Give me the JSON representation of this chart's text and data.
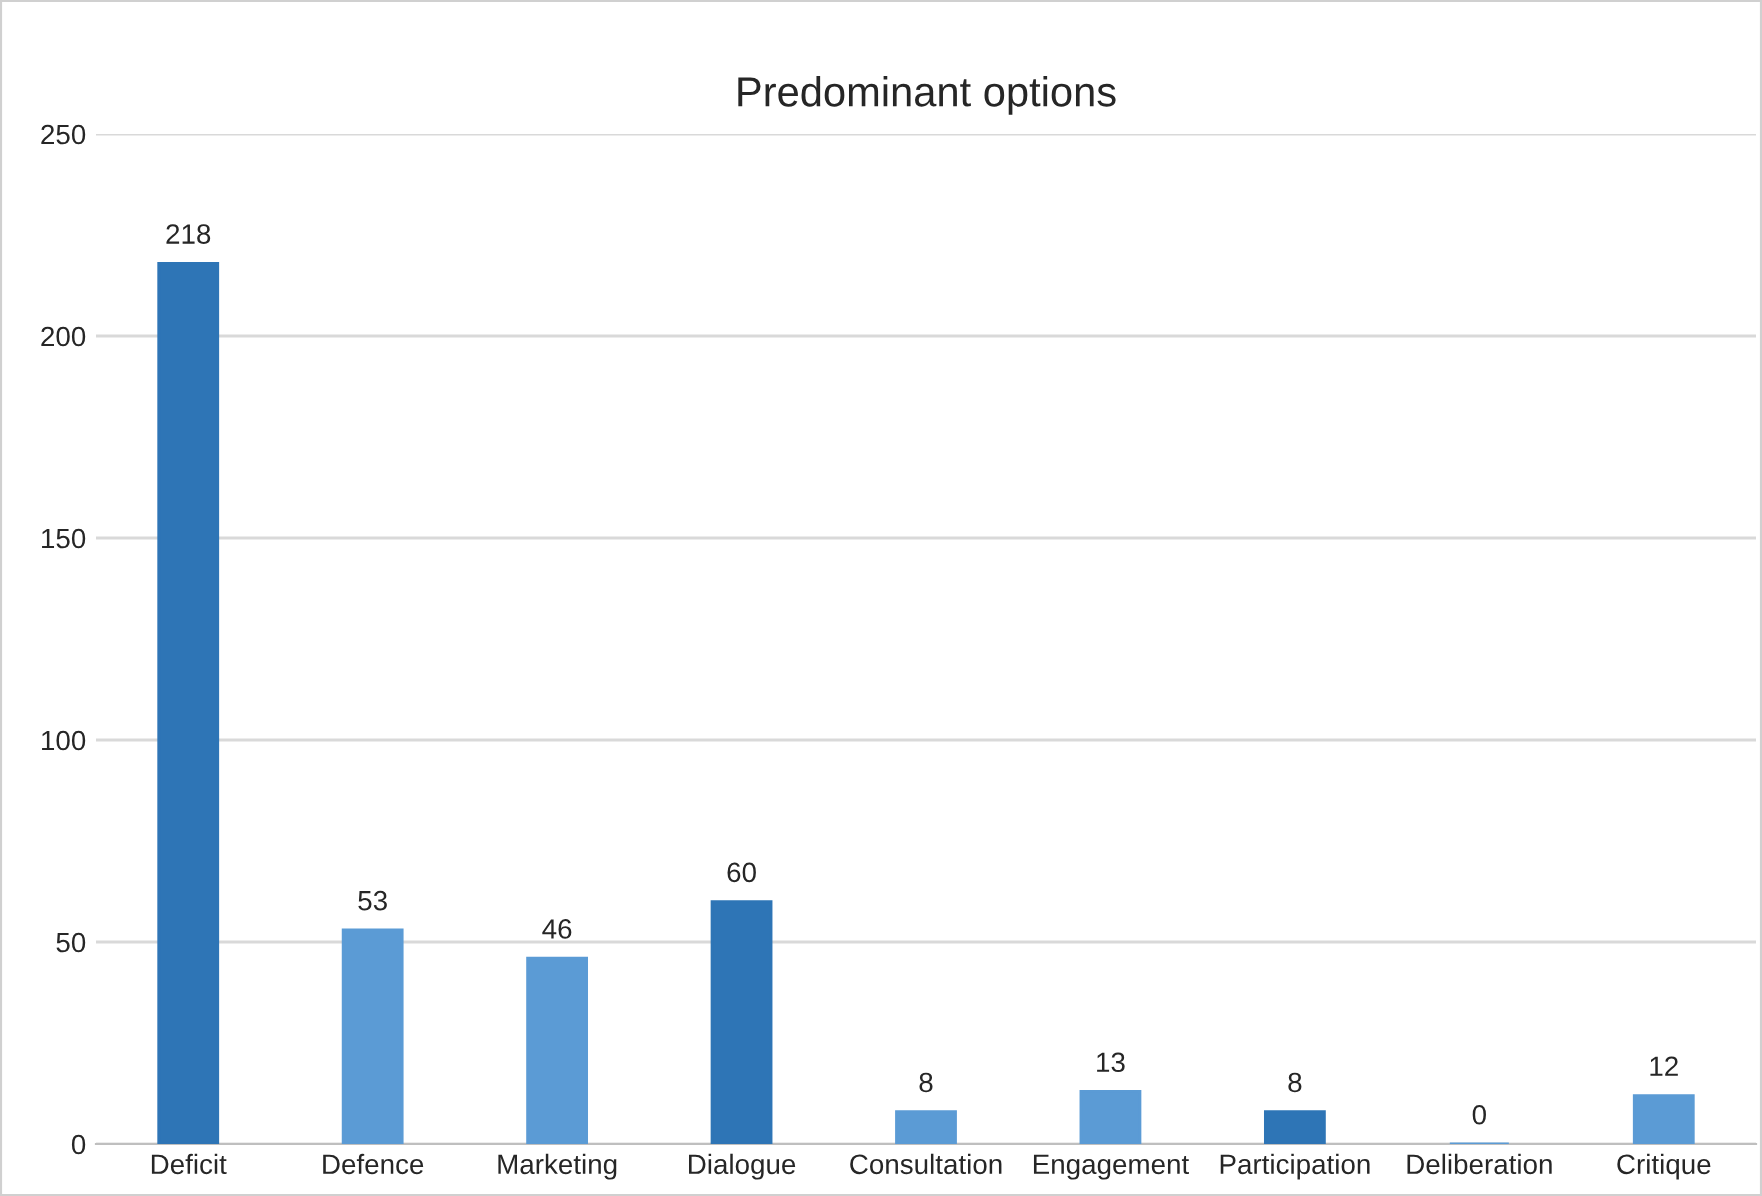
{
  "chart_data": {
    "type": "bar",
    "title": "Predominant options",
    "categories": [
      "Deficit",
      "Defence",
      "Marketing",
      "Dialogue",
      "Consultation",
      "Engagement",
      "Participation",
      "Deliberation",
      "Critique"
    ],
    "values": [
      218,
      53,
      46,
      60,
      8,
      13,
      8,
      0,
      12
    ],
    "colors": [
      "#2e75b6",
      "#5b9bd5",
      "#5b9bd5",
      "#2e75b6",
      "#5b9bd5",
      "#5b9bd5",
      "#2e75b6",
      "#5b9bd5",
      "#5b9bd5"
    ],
    "ylim": [
      0,
      250
    ],
    "yticks": [
      0,
      50,
      100,
      150,
      200,
      250
    ],
    "grid": "y",
    "data_labels": true,
    "legend": false
  }
}
